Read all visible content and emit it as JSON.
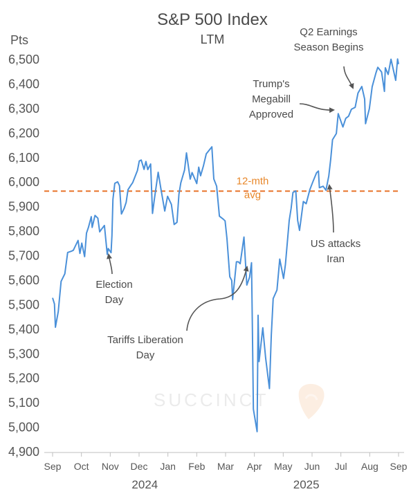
{
  "chart_data": {
    "type": "line",
    "title": "S&P 500 Index",
    "subtitle": "LTM",
    "ylabel": "Pts",
    "ylim": [
      4900,
      6500
    ],
    "yticks": [
      "4,900",
      "5,000",
      "5,100",
      "5,200",
      "5,300",
      "5,400",
      "5,500",
      "5,600",
      "5,700",
      "5,800",
      "5,900",
      "6,000",
      "6,100",
      "6,200",
      "6,300",
      "6,400",
      "6,500"
    ],
    "ytick_values": [
      4900,
      5000,
      5100,
      5200,
      5300,
      5400,
      5500,
      5600,
      5700,
      5800,
      5900,
      6000,
      6100,
      6200,
      6300,
      6400,
      6500
    ],
    "x_months": [
      "Sep",
      "Oct",
      "Nov",
      "Dec",
      "Jan",
      "Feb",
      "Mar",
      "Apr",
      "May",
      "Jun",
      "Jul",
      "Aug",
      "Sep"
    ],
    "x_years": [
      "2024",
      "2025"
    ],
    "series": [
      {
        "color": "#4a90d9",
        "x": [
          "2024-09-03",
          "2024-09-05",
          "2024-09-06",
          "2024-09-09",
          "2024-09-12",
          "2024-09-16",
          "2024-09-19",
          "2024-09-23",
          "2024-09-25",
          "2024-09-27",
          "2024-09-30",
          "2024-10-02",
          "2024-10-04",
          "2024-10-07",
          "2024-10-09",
          "2024-10-11",
          "2024-10-14",
          "2024-10-15",
          "2024-10-18",
          "2024-10-21",
          "2024-10-23",
          "2024-10-25",
          "2024-10-28",
          "2024-10-31",
          "2024-11-01",
          "2024-11-04",
          "2024-11-05",
          "2024-11-06",
          "2024-11-08",
          "2024-11-11",
          "2024-11-13",
          "2024-11-15",
          "2024-11-18",
          "2024-11-20",
          "2024-11-22",
          "2024-11-25",
          "2024-11-27",
          "2024-12-02",
          "2024-12-04",
          "2024-12-06",
          "2024-12-09",
          "2024-12-11",
          "2024-12-13",
          "2024-12-16",
          "2024-12-18",
          "2024-12-20",
          "2024-12-24",
          "2024-12-27",
          "2024-12-31",
          "2025-01-03",
          "2025-01-07",
          "2025-01-10",
          "2025-01-13",
          "2025-01-15",
          "2025-01-17",
          "2025-01-21",
          "2025-01-23",
          "2025-01-27",
          "2025-01-29",
          "2025-02-03",
          "2025-02-05",
          "2025-02-07",
          "2025-02-10",
          "2025-02-13",
          "2025-02-19",
          "2025-02-21",
          "2025-02-24",
          "2025-02-27",
          "2025-03-03",
          "2025-03-05",
          "2025-03-07",
          "2025-03-10",
          "2025-03-12",
          "2025-03-13",
          "2025-03-17",
          "2025-03-19",
          "2025-03-21",
          "2025-03-25",
          "2025-03-28",
          "2025-03-31",
          "2025-04-02",
          "2025-04-03",
          "2025-04-04",
          "2025-04-08",
          "2025-04-09",
          "2025-04-10",
          "2025-04-14",
          "2025-04-17",
          "2025-04-21",
          "2025-04-23",
          "2025-04-25",
          "2025-04-29",
          "2025-05-02",
          "2025-05-06",
          "2025-05-08",
          "2025-05-12",
          "2025-05-14",
          "2025-05-16",
          "2025-05-19",
          "2025-05-21",
          "2025-05-23",
          "2025-05-27",
          "2025-05-30",
          "2025-06-03",
          "2025-06-06",
          "2025-06-10",
          "2025-06-12",
          "2025-06-13",
          "2025-06-17",
          "2025-06-20",
          "2025-06-23",
          "2025-06-25",
          "2025-06-27",
          "2025-07-01",
          "2025-07-03",
          "2025-07-08",
          "2025-07-11",
          "2025-07-14",
          "2025-07-17",
          "2025-07-21",
          "2025-07-24",
          "2025-07-28",
          "2025-07-31",
          "2025-08-01",
          "2025-08-05",
          "2025-08-08",
          "2025-08-12",
          "2025-08-14",
          "2025-08-18",
          "2025-08-21",
          "2025-08-22",
          "2025-08-25",
          "2025-08-28",
          "2025-09-02",
          "2025-09-04",
          "2025-09-05"
        ],
        "values": [
          5528,
          5503,
          5408,
          5472,
          5595,
          5626,
          5713,
          5718,
          5722,
          5738,
          5762,
          5709,
          5751,
          5696,
          5792,
          5815,
          5859,
          5815,
          5864,
          5853,
          5797,
          5808,
          5823,
          5705,
          5729,
          5712,
          5782,
          5929,
          5995,
          6001,
          5985,
          5870,
          5893,
          5917,
          5969,
          5987,
          5998,
          6047,
          6086,
          6090,
          6052,
          6084,
          6051,
          6074,
          5872,
          5930,
          6040,
          5970,
          5882,
          5942,
          5909,
          5827,
          5836,
          5950,
          5997,
          6049,
          6119,
          6012,
          6039,
          5994,
          6061,
          6026,
          6066,
          6115,
          6144,
          6013,
          5983,
          5861,
          5849,
          5842,
          5770,
          5614,
          5599,
          5521,
          5675,
          5675,
          5667,
          5776,
          5580,
          5612,
          5671,
          5397,
          5074,
          4982,
          5457,
          5268,
          5406,
          5283,
          5158,
          5376,
          5525,
          5560,
          5686,
          5607,
          5664,
          5844,
          5892,
          5958,
          5964,
          5844,
          5803,
          5921,
          5912,
          5970,
          6000,
          6038,
          6045,
          5977,
          5983,
          5967,
          6025,
          6092,
          6173,
          6198,
          6279,
          6225,
          6260,
          6269,
          6297,
          6305,
          6363,
          6390,
          6339,
          6238,
          6299,
          6389,
          6445,
          6468,
          6449,
          6370,
          6466,
          6439,
          6501,
          6415,
          6502,
          6481
        ]
      }
    ],
    "reference_line": {
      "value": 5963,
      "label_line1": "12-mth",
      "label_line2": "avg",
      "color": "#e8732a"
    },
    "annotations": [
      {
        "lines": [
          "Election",
          "Day"
        ],
        "date": "2024-11-05"
      },
      {
        "lines": [
          "Tariffs Liberation",
          "Day"
        ],
        "date": "2025-04-02"
      },
      {
        "lines": [
          "Trump's",
          "Megabill",
          "Approved"
        ],
        "date": "2025-07-03"
      },
      {
        "lines": [
          "Q2 Earnings",
          "Season Begins"
        ],
        "date": "2025-07-15"
      },
      {
        "lines": [
          "US attacks",
          "Iran"
        ],
        "date": "2025-06-21"
      }
    ],
    "watermark": "SUCCINCT",
    "grid": false
  }
}
